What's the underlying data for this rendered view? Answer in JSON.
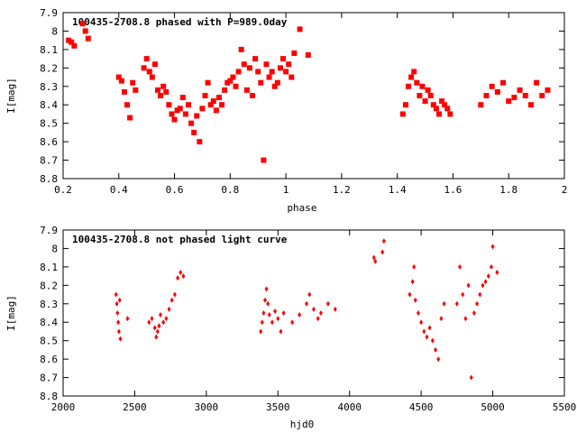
{
  "chart_data": [
    {
      "type": "scatter",
      "title": "100435-2708.8 phased with P=989.0day",
      "xlabel": "phase",
      "ylabel": "I[mag]",
      "xlim": [
        0.2,
        2
      ],
      "ylim": [
        8.8,
        7.9
      ],
      "y_inverted": true,
      "grid": false,
      "xticks": [
        "0.2",
        "0.4",
        "0.6",
        "0.8",
        "1",
        "1.2",
        "1.4",
        "1.6",
        "1.8",
        "2"
      ],
      "yticks": [
        "7.9",
        "8",
        "8.1",
        "8.2",
        "8.3",
        "8.4",
        "8.5",
        "8.6",
        "8.7",
        "8.8"
      ],
      "color": "#ff0000",
      "series": [
        {
          "values": [
            [
              0.22,
              8.05
            ],
            [
              0.23,
              8.06
            ],
            [
              0.24,
              8.08
            ],
            [
              0.27,
              7.96
            ],
            [
              0.28,
              8.0
            ],
            [
              0.29,
              8.04
            ],
            [
              0.4,
              8.25
            ],
            [
              0.41,
              8.27
            ],
            [
              0.42,
              8.33
            ],
            [
              0.43,
              8.4
            ],
            [
              0.44,
              8.47
            ],
            [
              0.45,
              8.28
            ],
            [
              0.46,
              8.32
            ],
            [
              0.49,
              8.2
            ],
            [
              0.5,
              8.15
            ],
            [
              0.51,
              8.22
            ],
            [
              0.52,
              8.25
            ],
            [
              0.53,
              8.18
            ],
            [
              0.54,
              8.32
            ],
            [
              0.55,
              8.35
            ],
            [
              0.56,
              8.3
            ],
            [
              0.57,
              8.33
            ],
            [
              0.58,
              8.4
            ],
            [
              0.59,
              8.45
            ],
            [
              0.6,
              8.48
            ],
            [
              0.61,
              8.43
            ],
            [
              0.62,
              8.42
            ],
            [
              0.63,
              8.36
            ],
            [
              0.64,
              8.45
            ],
            [
              0.65,
              8.4
            ],
            [
              0.66,
              8.5
            ],
            [
              0.67,
              8.55
            ],
            [
              0.68,
              8.46
            ],
            [
              0.69,
              8.6
            ],
            [
              0.7,
              8.42
            ],
            [
              0.71,
              8.35
            ],
            [
              0.72,
              8.28
            ],
            [
              0.73,
              8.4
            ],
            [
              0.74,
              8.38
            ],
            [
              0.75,
              8.43
            ],
            [
              0.76,
              8.36
            ],
            [
              0.77,
              8.4
            ],
            [
              0.78,
              8.32
            ],
            [
              0.79,
              8.28
            ],
            [
              0.8,
              8.27
            ],
            [
              0.81,
              8.25
            ],
            [
              0.82,
              8.3
            ],
            [
              0.83,
              8.22
            ],
            [
              0.84,
              8.1
            ],
            [
              0.85,
              8.18
            ],
            [
              0.86,
              8.32
            ],
            [
              0.87,
              8.2
            ],
            [
              0.88,
              8.35
            ],
            [
              0.89,
              8.15
            ],
            [
              0.9,
              8.22
            ],
            [
              0.91,
              8.28
            ],
            [
              0.92,
              8.7
            ],
            [
              0.93,
              8.18
            ],
            [
              0.94,
              8.25
            ],
            [
              0.95,
              8.22
            ],
            [
              0.96,
              8.3
            ],
            [
              0.97,
              8.28
            ],
            [
              0.98,
              8.2
            ],
            [
              0.99,
              8.15
            ],
            [
              1.0,
              8.22
            ],
            [
              1.01,
              8.18
            ],
            [
              1.02,
              8.25
            ],
            [
              1.03,
              8.12
            ],
            [
              1.05,
              7.99
            ],
            [
              1.08,
              8.13
            ],
            [
              1.42,
              8.45
            ],
            [
              1.43,
              8.4
            ],
            [
              1.44,
              8.3
            ],
            [
              1.45,
              8.25
            ],
            [
              1.46,
              8.22
            ],
            [
              1.47,
              8.28
            ],
            [
              1.48,
              8.35
            ],
            [
              1.49,
              8.3
            ],
            [
              1.5,
              8.38
            ],
            [
              1.51,
              8.32
            ],
            [
              1.52,
              8.35
            ],
            [
              1.53,
              8.4
            ],
            [
              1.54,
              8.42
            ],
            [
              1.55,
              8.45
            ],
            [
              1.56,
              8.38
            ],
            [
              1.57,
              8.4
            ],
            [
              1.58,
              8.42
            ],
            [
              1.59,
              8.45
            ],
            [
              1.7,
              8.4
            ],
            [
              1.72,
              8.35
            ],
            [
              1.74,
              8.3
            ],
            [
              1.76,
              8.33
            ],
            [
              1.78,
              8.28
            ],
            [
              1.8,
              8.38
            ],
            [
              1.82,
              8.36
            ],
            [
              1.84,
              8.32
            ],
            [
              1.86,
              8.35
            ],
            [
              1.88,
              8.4
            ],
            [
              1.9,
              8.28
            ],
            [
              1.92,
              8.35
            ],
            [
              1.94,
              8.32
            ]
          ]
        }
      ]
    },
    {
      "type": "scatter",
      "title": "100435-2708.8 not phased light curve",
      "xlabel": "hjd0",
      "ylabel": "I[mag]",
      "xlim": [
        2000,
        5500
      ],
      "ylim": [
        8.8,
        7.9
      ],
      "y_inverted": true,
      "grid": false,
      "xticks": [
        "2000",
        "2500",
        "3000",
        "3500",
        "4000",
        "4500",
        "5000",
        "5500"
      ],
      "yticks": [
        "7.9",
        "8",
        "8.1",
        "8.2",
        "8.3",
        "8.4",
        "8.5",
        "8.6",
        "8.7",
        "8.8"
      ],
      "color": "#ff0000",
      "series": [
        {
          "values": [
            [
              2370,
              8.25
            ],
            [
              2375,
              8.3
            ],
            [
              2380,
              8.35
            ],
            [
              2385,
              8.4
            ],
            [
              2390,
              8.45
            ],
            [
              2395,
              8.28
            ],
            [
              2400,
              8.49
            ],
            [
              2450,
              8.38
            ],
            [
              2600,
              8.4
            ],
            [
              2620,
              8.38
            ],
            [
              2640,
              8.43
            ],
            [
              2650,
              8.48
            ],
            [
              2660,
              8.45
            ],
            [
              2670,
              8.42
            ],
            [
              2680,
              8.36
            ],
            [
              2700,
              8.4
            ],
            [
              2720,
              8.38
            ],
            [
              2740,
              8.33
            ],
            [
              2760,
              8.28
            ],
            [
              2780,
              8.25
            ],
            [
              2800,
              8.16
            ],
            [
              2820,
              8.13
            ],
            [
              2840,
              8.15
            ],
            [
              3380,
              8.45
            ],
            [
              3390,
              8.4
            ],
            [
              3400,
              8.35
            ],
            [
              3410,
              8.28
            ],
            [
              3420,
              8.22
            ],
            [
              3430,
              8.3
            ],
            [
              3440,
              8.36
            ],
            [
              3460,
              8.4
            ],
            [
              3480,
              8.34
            ],
            [
              3500,
              8.38
            ],
            [
              3520,
              8.45
            ],
            [
              3540,
              8.35
            ],
            [
              3600,
              8.4
            ],
            [
              3650,
              8.36
            ],
            [
              3700,
              8.3
            ],
            [
              3720,
              8.25
            ],
            [
              3750,
              8.33
            ],
            [
              3780,
              8.38
            ],
            [
              3800,
              8.35
            ],
            [
              3850,
              8.3
            ],
            [
              3900,
              8.33
            ],
            [
              4170,
              8.05
            ],
            [
              4180,
              8.07
            ],
            [
              4230,
              8.02
            ],
            [
              4240,
              7.96
            ],
            [
              4420,
              8.25
            ],
            [
              4440,
              8.18
            ],
            [
              4450,
              8.1
            ],
            [
              4460,
              8.28
            ],
            [
              4480,
              8.35
            ],
            [
              4500,
              8.4
            ],
            [
              4520,
              8.45
            ],
            [
              4540,
              8.48
            ],
            [
              4560,
              8.43
            ],
            [
              4580,
              8.5
            ],
            [
              4600,
              8.55
            ],
            [
              4620,
              8.6
            ],
            [
              4640,
              8.38
            ],
            [
              4660,
              8.3
            ],
            [
              4750,
              8.3
            ],
            [
              4770,
              8.1
            ],
            [
              4790,
              8.25
            ],
            [
              4810,
              8.38
            ],
            [
              4830,
              8.2
            ],
            [
              4850,
              8.7
            ],
            [
              4870,
              8.35
            ],
            [
              4890,
              8.3
            ],
            [
              4910,
              8.25
            ],
            [
              4930,
              8.2
            ],
            [
              4950,
              8.18
            ],
            [
              4970,
              8.15
            ],
            [
              4990,
              8.1
            ],
            [
              5000,
              7.99
            ],
            [
              5030,
              8.13
            ]
          ]
        }
      ]
    }
  ]
}
